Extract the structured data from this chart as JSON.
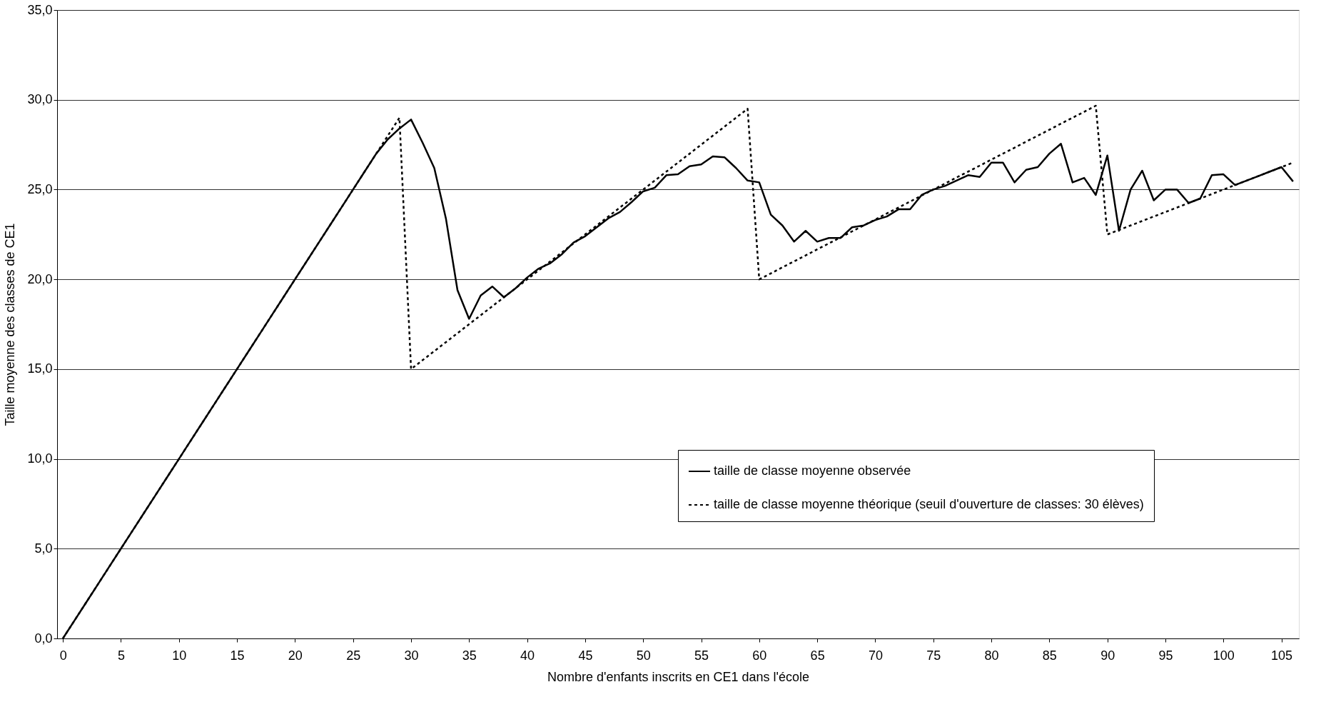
{
  "chart_data": {
    "type": "line",
    "xlabel": "Nombre d'enfants inscrits en CE1 dans l'école",
    "ylabel": "Taille moyenne des classes de CE1",
    "xlim": [
      -0.5,
      106.5
    ],
    "xticks": [
      0,
      5,
      10,
      15,
      20,
      25,
      30,
      35,
      40,
      45,
      50,
      55,
      60,
      65,
      70,
      75,
      80,
      85,
      90,
      95,
      100,
      105
    ],
    "ylim": [
      0,
      35
    ],
    "yticks": [
      {
        "value": 0,
        "label": "0,0"
      },
      {
        "value": 5,
        "label": "5,0"
      },
      {
        "value": 10,
        "label": "10,0"
      },
      {
        "value": 15,
        "label": "15,0"
      },
      {
        "value": 20,
        "label": "20,0"
      },
      {
        "value": 25,
        "label": "25,0"
      },
      {
        "value": 30,
        "label": "30,0"
      },
      {
        "value": 35,
        "label": "35,0"
      }
    ],
    "grid": "y",
    "legend": "bottom right",
    "marker": "none",
    "x": [
      0,
      1,
      2,
      3,
      4,
      5,
      6,
      7,
      8,
      9,
      10,
      11,
      12,
      13,
      14,
      15,
      16,
      17,
      18,
      19,
      20,
      21,
      22,
      23,
      24,
      25,
      26,
      27,
      28,
      29,
      30,
      31,
      32,
      33,
      34,
      35,
      36,
      37,
      38,
      39,
      40,
      41,
      42,
      43,
      44,
      45,
      46,
      47,
      48,
      49,
      50,
      51,
      52,
      53,
      54,
      55,
      56,
      57,
      58,
      59,
      60,
      61,
      62,
      63,
      64,
      65,
      66,
      67,
      68,
      69,
      70,
      71,
      72,
      73,
      74,
      75,
      76,
      77,
      78,
      79,
      80,
      81,
      82,
      83,
      84,
      85,
      86,
      87,
      88,
      89,
      90,
      91,
      92,
      93,
      94,
      95,
      96,
      97,
      98,
      99,
      100,
      101,
      102,
      103,
      104,
      105,
      106
    ],
    "series": [
      {
        "name": "taille de classe moyenne observée",
        "color": "#000000",
        "line_style": "solid",
        "values": [
          0,
          1,
          2,
          3,
          4,
          5,
          6,
          7,
          8,
          9,
          10,
          11,
          12,
          13,
          14,
          15,
          16,
          17,
          18,
          19,
          20,
          21,
          22,
          23,
          24,
          25,
          26,
          27,
          27.8,
          28.4,
          28.9,
          27.6,
          26.2,
          23.4,
          19.4,
          17.8,
          19.1,
          19.6,
          19.0,
          19.5,
          20.1,
          20.6,
          20.9,
          21.4,
          22.05,
          22.4,
          22.9,
          23.4,
          23.75,
          24.3,
          24.9,
          25.1,
          25.8,
          25.85,
          26.3,
          26.4,
          26.85,
          26.8,
          26.2,
          25.5,
          25.4,
          23.6,
          23.0,
          22.1,
          22.7,
          22.1,
          22.3,
          22.3,
          22.9,
          23.0,
          23.3,
          23.5,
          23.9,
          23.9,
          24.7,
          25.0,
          25.2,
          25.5,
          25.8,
          25.7,
          26.5,
          26.5,
          25.4,
          26.1,
          26.25,
          27.0,
          27.55,
          25.4,
          25.65,
          24.7,
          26.9,
          22.7,
          25.0,
          26.05,
          24.4,
          25.0,
          25.0,
          24.25,
          24.5,
          25.8,
          25.85,
          25.25,
          25.5,
          25.75,
          26.0,
          26.25,
          25.45
        ]
      },
      {
        "name": "taille de classe moyenne théorique (seuil d'ouverture de classes: 30 élèves)",
        "color": "#000000",
        "line_style": "dotted",
        "values": [
          0,
          1,
          2,
          3,
          4,
          5,
          6,
          7,
          8,
          9,
          10,
          11,
          12,
          13,
          14,
          15,
          16,
          17,
          18,
          19,
          20,
          21,
          22,
          23,
          24,
          25,
          26,
          27,
          28,
          29,
          15,
          15.5,
          16,
          16.5,
          17,
          17.5,
          18,
          18.5,
          19,
          19.5,
          20,
          20.5,
          21,
          21.5,
          22,
          22.5,
          23,
          23.5,
          24,
          24.5,
          25,
          25.5,
          26,
          26.5,
          27,
          27.5,
          28,
          28.5,
          29,
          29.5,
          20,
          20.33,
          20.67,
          21,
          21.33,
          21.67,
          22,
          22.33,
          22.67,
          23,
          23.33,
          23.67,
          24,
          24.33,
          24.67,
          25,
          25.33,
          25.67,
          26,
          26.33,
          26.67,
          27,
          27.33,
          27.67,
          28,
          28.33,
          28.67,
          29,
          29.33,
          29.67,
          22.5,
          22.75,
          23,
          23.25,
          23.5,
          23.75,
          24,
          24.25,
          24.5,
          24.75,
          25,
          25.25,
          25.5,
          25.75,
          26,
          26.25,
          26.5
        ]
      }
    ]
  }
}
